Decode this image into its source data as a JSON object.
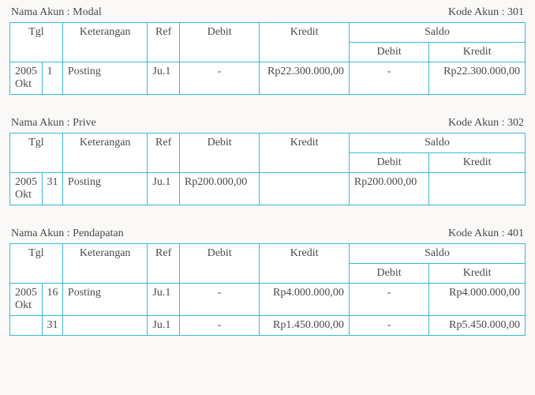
{
  "labels": {
    "nama_akun_prefix": "Nama Akun : ",
    "kode_akun_prefix": "Kode Akun : ",
    "tgl": "Tgl",
    "keterangan": "Keterangan",
    "ref": "Ref",
    "debit": "Debit",
    "kredit": "Kredit",
    "saldo": "Saldo"
  },
  "accounts": [
    {
      "name": "Modal",
      "code": "301",
      "rows": [
        {
          "year": "2005 Okt",
          "day": "1",
          "ket": "Posting",
          "ref": "Ju.1",
          "debit": "-",
          "kredit": "Rp22.300.000,00",
          "s_debit": "-",
          "s_kredit": "Rp22.300.000,00"
        }
      ]
    },
    {
      "name": "Prive",
      "code": "302",
      "rows": [
        {
          "year": "2005 Okt",
          "day": "31",
          "ket": "Posting",
          "ref": "Ju.1",
          "debit": "Rp200.000,00",
          "kredit": "",
          "s_debit": "Rp200.000,00",
          "s_kredit": ""
        }
      ]
    },
    {
      "name": "Pendapatan",
      "code": "401",
      "rows": [
        {
          "year": "2005 Okt",
          "day": "16",
          "ket": "Posting",
          "ref": "Ju.1",
          "debit": "-",
          "kredit": "Rp4.000.000,00",
          "s_debit": "-",
          "s_kredit": "Rp4.000.000,00"
        },
        {
          "year": "",
          "day": "31",
          "ket": "",
          "ref": "Ju.1",
          "debit": "-",
          "kredit": "Rp1.450.000,00",
          "s_debit": "-",
          "s_kredit": "Rp5.450.000,00"
        }
      ]
    }
  ]
}
